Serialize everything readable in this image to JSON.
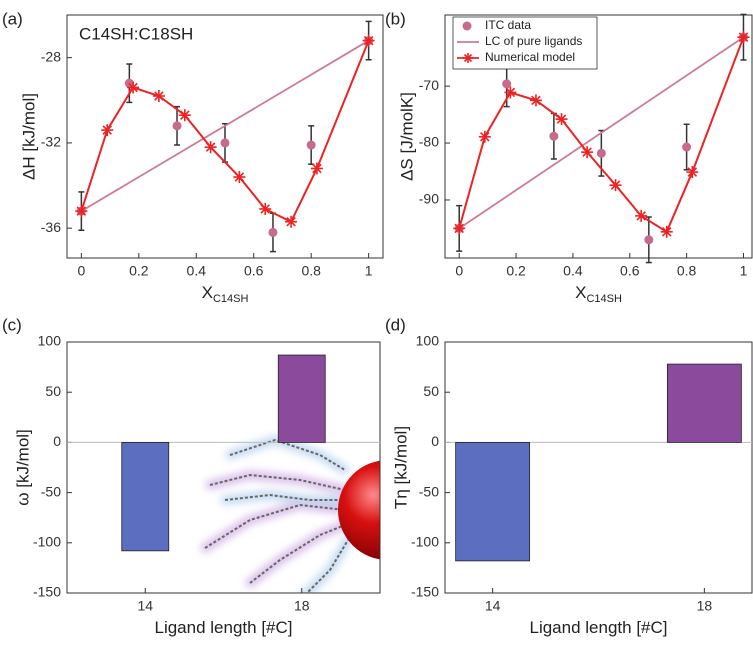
{
  "chart_data": [
    {
      "type": "line",
      "panel_label": "(a)",
      "annotation": "C14SH:C18SH",
      "ylabel": "ΔH [kJ/mol]",
      "xlabel": "X",
      "xlabel_subscript": "C14SH",
      "xlim": [
        -0.05,
        1.05
      ],
      "xticks": [
        0,
        0.2,
        0.4,
        0.6,
        0.8,
        1
      ],
      "ylim": [
        -37.4,
        -26
      ],
      "yticks": [
        -36,
        -32,
        -28
      ],
      "series": [
        {
          "name": "ITC data",
          "style": "markers",
          "color": "#c76a8c",
          "x": [
            0,
            0.167,
            0.333,
            0.5,
            0.667,
            0.8,
            1
          ],
          "values": [
            -35.2,
            -29.2,
            -31.2,
            -32.0,
            -36.2,
            -32.1,
            -27.2
          ],
          "errors": [
            0.9,
            0.9,
            0.9,
            0.9,
            0.9,
            0.9,
            0.9
          ]
        },
        {
          "name": "LC of pure ligands",
          "style": "line",
          "color": "#d07a92",
          "x": [
            0,
            1
          ],
          "values": [
            -35.2,
            -27.2
          ]
        },
        {
          "name": "Numerical model",
          "style": "line+markers",
          "color": "#ee2222",
          "x": [
            0,
            0.09,
            0.18,
            0.27,
            0.36,
            0.45,
            0.55,
            0.64,
            0.73,
            0.82,
            1
          ],
          "values": [
            -35.2,
            -31.4,
            -29.4,
            -29.8,
            -30.7,
            -32.2,
            -33.6,
            -35.1,
            -35.7,
            -33.2,
            -27.2
          ]
        }
      ]
    },
    {
      "type": "line",
      "panel_label": "(b)",
      "ylabel": "ΔS [J/molK]",
      "xlabel": "X",
      "xlabel_subscript": "C14SH",
      "legend": "upper left",
      "xlim": [
        -0.05,
        1.03
      ],
      "xticks": [
        0,
        0.2,
        0.4,
        0.6,
        0.8,
        1
      ],
      "ylim": [
        -100.2,
        -57.5
      ],
      "yticks": [
        -90,
        -80,
        -70
      ],
      "series": [
        {
          "name": "ITC data",
          "style": "markers",
          "color": "#c76a8c",
          "x": [
            0,
            0.167,
            0.333,
            0.5,
            0.667,
            0.8,
            1
          ],
          "values": [
            -95,
            -69.6,
            -78.8,
            -81.8,
            -97,
            -80.7,
            -61.4
          ],
          "errors": [
            4,
            4,
            4,
            4,
            4,
            4,
            4
          ]
        },
        {
          "name": "LC of pure ligands",
          "style": "line",
          "color": "#d07a92",
          "x": [
            0,
            1
          ],
          "values": [
            -95,
            -61.4
          ]
        },
        {
          "name": "Numerical model",
          "style": "line+markers",
          "color": "#ee2222",
          "x": [
            0,
            0.09,
            0.18,
            0.27,
            0.36,
            0.45,
            0.55,
            0.64,
            0.73,
            0.82,
            1
          ],
          "values": [
            -95,
            -78.9,
            -71.1,
            -72.5,
            -75.8,
            -81.6,
            -87.4,
            -92.8,
            -95.6,
            -85.1,
            -61.4
          ]
        }
      ]
    },
    {
      "type": "bar",
      "panel_label": "(c)",
      "ylabel": "ω [kJ/mol]",
      "xlabel": "Ligand length [#C]",
      "xlim": [
        12,
        20
      ],
      "xticks": [
        14,
        18
      ],
      "ylim": [
        -150,
        100
      ],
      "yticks": [
        -150,
        -100,
        -50,
        0,
        50,
        100
      ],
      "x": [
        14,
        18
      ],
      "values": [
        -108,
        87
      ],
      "colors": [
        "#5b6ebf",
        "#8b4a9c"
      ]
    },
    {
      "type": "bar",
      "panel_label": "(d)",
      "ylabel": "Tη [kJ/mol]",
      "xlabel": "Ligand length [#C]",
      "xlim": [
        13.1,
        18.9
      ],
      "xticks": [
        14,
        18
      ],
      "ylim": [
        -150,
        100
      ],
      "yticks": [
        -150,
        -100,
        -50,
        0,
        50,
        100
      ],
      "x": [
        14,
        18
      ],
      "values": [
        -118,
        78
      ],
      "colors": [
        "#5b6ebf",
        "#8b4a9c"
      ]
    }
  ]
}
